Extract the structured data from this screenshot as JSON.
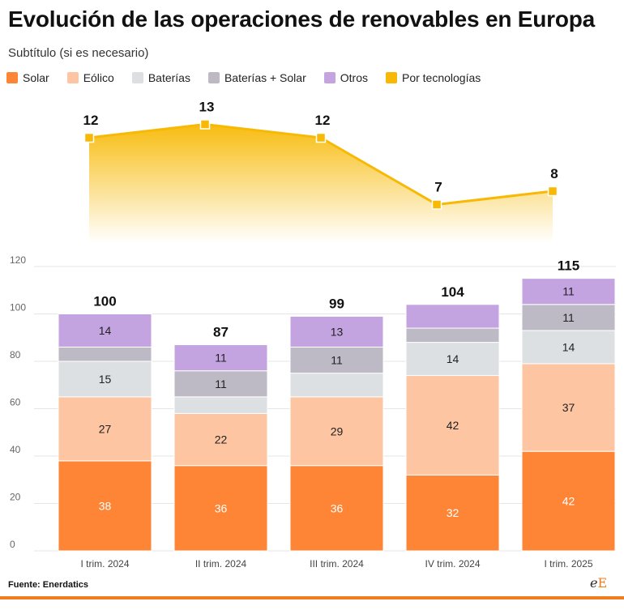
{
  "title": "Evolución de las operaciones de renovables en Europa",
  "subtitle": "Subtítulo (si es necesario)",
  "source": "Fuente: Enerdatics",
  "logo": {
    "part1": "e",
    "part2": "E"
  },
  "legend": [
    {
      "label": "Solar",
      "color": "#fd8535"
    },
    {
      "label": "Eólico",
      "color": "#fdc5a1"
    },
    {
      "label": "Baterías",
      "color": "#dde0e3"
    },
    {
      "label": "Baterías + Solar",
      "color": "#bdbac5"
    },
    {
      "label": "Otros",
      "color": "#c4a3e1"
    },
    {
      "label": "Por tecnologías",
      "color": "#f7b904"
    }
  ],
  "chart_data": [
    {
      "type": "area",
      "title": "",
      "series": [
        {
          "name": "Por tecnologías",
          "values": [
            12,
            13,
            12,
            7,
            8
          ]
        }
      ],
      "categories": [
        "I trim. 2024",
        "II trim. 2024",
        "III trim. 2024",
        "IV trim. 2024",
        "I trim. 2025"
      ],
      "labels": [
        "12",
        "13",
        "12",
        "7",
        "8"
      ],
      "color": "#f7b904"
    },
    {
      "type": "bar",
      "stacked": true,
      "categories": [
        "I trim. 2024",
        "II trim. 2024",
        "III trim. 2024",
        "IV trim. 2024",
        "I trim. 2025"
      ],
      "series": [
        {
          "name": "Solar",
          "color": "#fd8535",
          "values": [
            38,
            36,
            36,
            32,
            42
          ],
          "labels": [
            "38",
            "36",
            "36",
            "32",
            "42"
          ],
          "label_color": "#ffffff"
        },
        {
          "name": "Eólico",
          "color": "#fdc5a1",
          "values": [
            27,
            22,
            29,
            42,
            37
          ],
          "labels": [
            "27",
            "22",
            "29",
            "42",
            "37"
          ],
          "label_color": "#222222"
        },
        {
          "name": "Baterías",
          "color": "#dde0e3",
          "values": [
            15,
            7,
            10,
            14,
            14
          ],
          "labels": [
            "15",
            "",
            "",
            "14",
            "14"
          ],
          "label_color": "#222222"
        },
        {
          "name": "Baterías + Solar",
          "color": "#bdbac5",
          "values": [
            6,
            11,
            11,
            6,
            11
          ],
          "labels": [
            "",
            "11",
            "11",
            "",
            "11"
          ],
          "label_color": "#222222"
        },
        {
          "name": "Otros",
          "color": "#c4a3e1",
          "values": [
            14,
            11,
            13,
            10,
            11
          ],
          "labels": [
            "14",
            "11",
            "13",
            "",
            "11"
          ],
          "label_color": "#222222"
        }
      ],
      "totals": [
        100,
        87,
        99,
        104,
        115
      ],
      "total_labels": [
        "100",
        "87",
        "99",
        "104",
        "115"
      ],
      "yticks": [
        "0",
        "20",
        "40",
        "60",
        "80",
        "100",
        "120"
      ],
      "ylim": [
        0,
        120
      ],
      "grid": true
    }
  ]
}
